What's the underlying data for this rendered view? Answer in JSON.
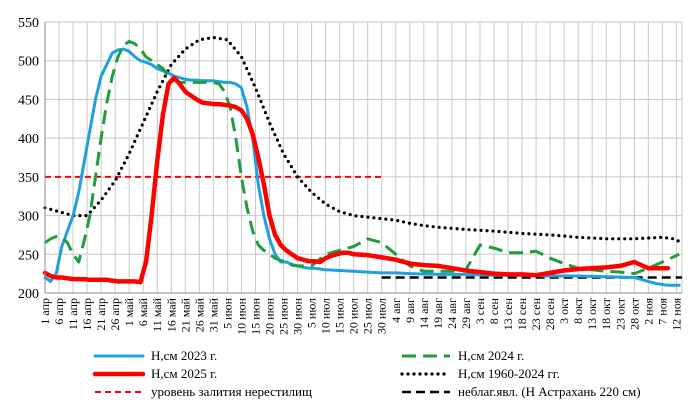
{
  "chart_data": {
    "type": "line",
    "title": "",
    "xlabel": "",
    "ylabel": "",
    "ylim": [
      200,
      550
    ],
    "yticks": [
      "200",
      "250",
      "300",
      "350",
      "400",
      "450",
      "500",
      "550"
    ],
    "x_start_date": "1 апр",
    "x_span_days": 227,
    "x_tick_labels": [
      "1 апр",
      "6 апр",
      "11 апр",
      "16 апр",
      "21 апр",
      "26 апр",
      "1 май",
      "6 май",
      "11 май",
      "16 май",
      "21 май",
      "26 май",
      "31 май",
      "5 июн",
      "10 июн",
      "15 июн",
      "20 июн",
      "25 июн",
      "30 июн",
      "5 июл",
      "10 июл",
      "15 июл",
      "20 июл",
      "25 июл",
      "30 июл",
      "4 авг",
      "9 авг",
      "14 авг",
      "19 авг",
      "24 авг",
      "29 авг",
      "3 сен",
      "8 сен",
      "13 сен",
      "18 сен",
      "23 сен",
      "28 сен",
      "3 окт",
      "8 окт",
      "13 окт",
      "18 окт",
      "23 окт",
      "28 окт",
      "2 ноя",
      "7 ноя",
      "12 ноя"
    ],
    "grid": true,
    "legend_position": "bottom",
    "series": [
      {
        "name": "H,см 2023 г.",
        "color": "#1fa0e0",
        "style": "solid",
        "x": [
          0,
          2,
          4,
          6,
          8,
          10,
          12,
          14,
          16,
          18,
          20,
          22,
          24,
          26,
          28,
          30,
          32,
          34,
          36,
          38,
          40,
          42,
          44,
          46,
          48,
          50,
          52,
          54,
          56,
          58,
          60,
          62,
          64,
          66,
          68,
          70,
          72,
          74,
          76,
          78,
          80,
          82,
          84,
          86,
          88,
          90,
          92,
          94,
          96,
          98,
          100,
          105,
          110,
          115,
          120,
          125,
          130,
          140,
          150,
          160,
          170,
          180,
          190,
          200,
          210,
          215,
          218,
          222,
          226
        ],
        "y": [
          220,
          215,
          225,
          260,
          280,
          300,
          330,
          370,
          410,
          450,
          480,
          495,
          510,
          514,
          515,
          512,
          505,
          500,
          498,
          495,
          490,
          487,
          484,
          480,
          478,
          476,
          475,
          475,
          474,
          474,
          474,
          473,
          472,
          472,
          470,
          465,
          440,
          400,
          340,
          300,
          270,
          250,
          240,
          240,
          237,
          235,
          233,
          232,
          232,
          231,
          230,
          229,
          228,
          227,
          226,
          226,
          225,
          224,
          224,
          223,
          223,
          222,
          222,
          221,
          220,
          215,
          212,
          210,
          210
        ]
      },
      {
        "name": "H,см 2024 г.",
        "color": "#1f9e3c",
        "style": "dashed",
        "x": [
          0,
          2,
          4,
          6,
          8,
          10,
          12,
          14,
          16,
          18,
          20,
          22,
          24,
          26,
          28,
          30,
          32,
          34,
          36,
          38,
          40,
          42,
          44,
          46,
          48,
          50,
          52,
          54,
          56,
          58,
          60,
          62,
          64,
          66,
          68,
          70,
          72,
          74,
          76,
          78,
          80,
          82,
          84,
          86,
          88,
          90,
          95,
          100,
          105,
          110,
          115,
          120,
          125,
          130,
          135,
          140,
          145,
          150,
          155,
          160,
          165,
          170,
          175,
          180,
          185,
          190,
          195,
          200,
          205,
          210,
          215,
          220,
          226
        ],
        "y": [
          265,
          270,
          273,
          272,
          265,
          250,
          240,
          268,
          300,
          350,
          400,
          445,
          480,
          505,
          520,
          525,
          522,
          515,
          505,
          500,
          495,
          490,
          480,
          475,
          472,
          472,
          472,
          472,
          472,
          472,
          472,
          470,
          460,
          440,
          400,
          350,
          310,
          280,
          262,
          255,
          250,
          245,
          242,
          240,
          236,
          235,
          235,
          250,
          255,
          260,
          270,
          265,
          250,
          235,
          228,
          228,
          228,
          230,
          262,
          258,
          252,
          252,
          254,
          245,
          238,
          232,
          230,
          228,
          227,
          225,
          232,
          240,
          250
        ]
      },
      {
        "name": "H,см 2025 г.",
        "color": "#ff0000",
        "style": "solid",
        "x": [
          0,
          2,
          4,
          6,
          8,
          10,
          12,
          14,
          16,
          18,
          20,
          22,
          24,
          26,
          28,
          30,
          32,
          34,
          36,
          38,
          40,
          42,
          44,
          46,
          48,
          50,
          52,
          54,
          56,
          58,
          60,
          62,
          64,
          66,
          68,
          70,
          72,
          74,
          76,
          78,
          80,
          82,
          84,
          86,
          88,
          90,
          92,
          94,
          96,
          98,
          100,
          102,
          104,
          106,
          108,
          110,
          115,
          120,
          125,
          130,
          135,
          140,
          145,
          150,
          155,
          160,
          165,
          170,
          175,
          180,
          185,
          190,
          195,
          200,
          205,
          210,
          215,
          218,
          222
        ],
        "y": [
          226,
          222,
          220,
          220,
          219,
          218,
          218,
          218,
          217,
          217,
          217,
          217,
          216,
          215,
          215,
          215,
          215,
          214,
          240,
          300,
          370,
          430,
          470,
          478,
          470,
          460,
          455,
          450,
          446,
          445,
          444,
          444,
          443,
          442,
          440,
          436,
          425,
          405,
          375,
          340,
          300,
          275,
          262,
          255,
          250,
          245,
          243,
          241,
          241,
          240,
          245,
          248,
          250,
          252,
          252,
          250,
          249,
          246,
          243,
          238,
          236,
          235,
          232,
          229,
          227,
          225,
          224,
          224,
          223,
          226,
          229,
          231,
          232,
          233,
          235,
          240,
          232,
          232,
          232
        ]
      },
      {
        "name": "H,см 1960-2024 гг.",
        "color": "#000000",
        "style": "dotted",
        "x": [
          0,
          5,
          10,
          15,
          20,
          25,
          30,
          35,
          40,
          45,
          50,
          55,
          60,
          65,
          70,
          75,
          80,
          85,
          90,
          95,
          100,
          105,
          110,
          115,
          120,
          125,
          130,
          135,
          140,
          150,
          160,
          170,
          180,
          190,
          200,
          210,
          215,
          220,
          224,
          227
        ],
        "y": [
          310,
          305,
          300,
          300,
          320,
          345,
          380,
          420,
          460,
          495,
          515,
          527,
          530,
          527,
          505,
          465,
          420,
          380,
          350,
          330,
          315,
          305,
          300,
          298,
          296,
          294,
          290,
          287,
          285,
          282,
          280,
          277,
          275,
          272,
          270,
          270,
          271,
          272,
          270,
          265
        ]
      },
      {
        "name": "уровень залития нерестилищ",
        "color": "#ff0000",
        "style": "dashed-fine",
        "x": [
          0,
          120
        ],
        "y": [
          350,
          350
        ]
      },
      {
        "name": "неблаг.явл. (Н Астрахань 220 см)",
        "color": "#000000",
        "style": "dashed-bold",
        "x": [
          120,
          227
        ],
        "y": [
          220,
          220
        ]
      }
    ]
  }
}
